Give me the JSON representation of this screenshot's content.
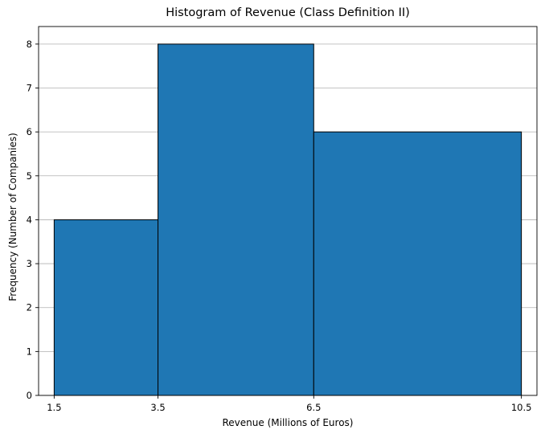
{
  "chart_data": {
    "type": "bar",
    "subtype": "histogram",
    "title": "Histogram of Revenue (Class Definition II)",
    "xlabel": "Revenue (Millions of Euros)",
    "ylabel": "Frequency (Number of Companies)",
    "bin_edges": [
      1.5,
      3.5,
      6.5,
      10.5
    ],
    "values": [
      4,
      8,
      6
    ],
    "xlim": [
      1.2,
      10.8
    ],
    "ylim": [
      0,
      8.4
    ],
    "xticks": [
      "1.5",
      "3.5",
      "6.5",
      "10.5"
    ],
    "yticks": [
      "0",
      "1",
      "2",
      "3",
      "4",
      "5",
      "6",
      "7",
      "8"
    ],
    "grid": "y",
    "legend": "none",
    "bar_color": "#1f77b4",
    "edge_color": "#000000"
  }
}
